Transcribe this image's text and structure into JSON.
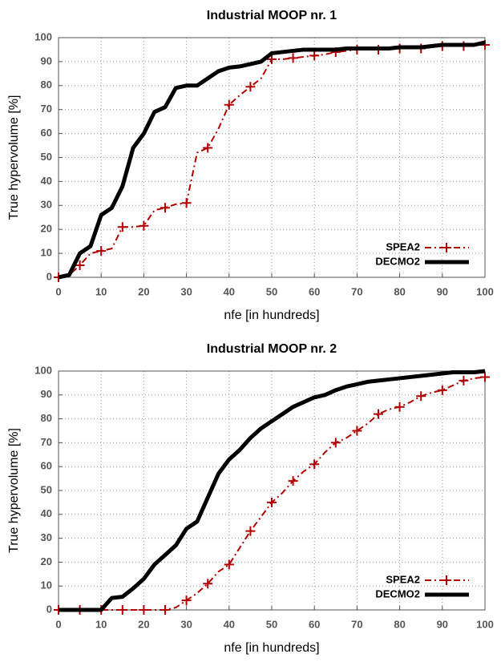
{
  "chart_data": [
    {
      "type": "line",
      "title": "Industrial MOOP nr. 1",
      "x_label": "nfe [in hundreds]",
      "y_label": "True hypervolume [%]",
      "x": [
        0,
        2.5,
        5,
        7.5,
        10,
        12.5,
        15,
        17.5,
        20,
        22.5,
        25,
        27.5,
        30,
        32.5,
        35,
        37.5,
        40,
        42.5,
        45,
        47.5,
        50,
        52.5,
        55,
        57.5,
        60,
        62.5,
        65,
        67.5,
        70,
        72.5,
        75,
        77.5,
        80,
        82.5,
        85,
        87.5,
        90,
        92.5,
        95,
        97.5,
        100
      ],
      "series": [
        {
          "name": "SPEA2",
          "color": "#b00000",
          "line_style": "dashdot",
          "marker": "+",
          "values": [
            0,
            1,
            5,
            10,
            11,
            12,
            21,
            21,
            21.5,
            28,
            29,
            30.5,
            31,
            52,
            54,
            62,
            72,
            76,
            79.5,
            83,
            91,
            91,
            91.5,
            92,
            92.5,
            93,
            94,
            94.5,
            95,
            95,
            95,
            95.5,
            95.5,
            95.5,
            95.5,
            96,
            96.5,
            96.5,
            96.5,
            97,
            97
          ]
        },
        {
          "name": "DECMO2",
          "color": "#000000",
          "line_style": "solid",
          "marker": "none",
          "values": [
            0,
            1,
            10,
            13,
            26,
            29,
            38,
            54,
            60,
            69,
            71,
            79,
            80,
            80,
            83,
            86,
            87.5,
            88,
            89,
            90,
            93.5,
            94,
            94.5,
            95,
            95,
            95,
            95,
            95.5,
            95.5,
            95.5,
            95.5,
            95.5,
            96,
            96,
            96,
            96.5,
            97,
            97,
            97,
            97,
            98
          ]
        }
      ],
      "xlim": [
        0,
        100
      ],
      "xticks": [
        0,
        10,
        20,
        30,
        40,
        50,
        60,
        70,
        80,
        90,
        100
      ],
      "ylim": [
        0,
        100
      ],
      "yticks": [
        0,
        10,
        20,
        30,
        40,
        50,
        60,
        70,
        80,
        90,
        100
      ],
      "grid": true,
      "legend": "lower right"
    },
    {
      "type": "line",
      "title": "Industrial MOOP nr. 2",
      "x_label": "nfe [in hundreds]",
      "y_label": "True hypervolume [%]",
      "x": [
        0,
        2.5,
        5,
        7.5,
        10,
        12.5,
        15,
        17.5,
        20,
        22.5,
        25,
        27.5,
        30,
        32.5,
        35,
        37.5,
        40,
        42.5,
        45,
        47.5,
        50,
        52.5,
        55,
        57.5,
        60,
        62.5,
        65,
        67.5,
        70,
        72.5,
        75,
        77.5,
        80,
        82.5,
        85,
        87.5,
        90,
        92.5,
        95,
        97.5,
        100
      ],
      "series": [
        {
          "name": "SPEA2",
          "color": "#b00000",
          "line_style": "dashdot",
          "marker": "+",
          "values": [
            0,
            0,
            0,
            0,
            0,
            0,
            0,
            0,
            0,
            0,
            0,
            1,
            4,
            7,
            11,
            16,
            19,
            26,
            33,
            39,
            45,
            49,
            54,
            58,
            61,
            66,
            70,
            72,
            75,
            78,
            82,
            84,
            85,
            87,
            89.5,
            91,
            92,
            94,
            96,
            97,
            97.5
          ]
        },
        {
          "name": "DECMO2",
          "color": "#000000",
          "line_style": "solid",
          "marker": "none",
          "values": [
            0,
            0,
            0,
            0,
            0,
            5,
            5.5,
            9,
            13,
            19,
            23,
            27,
            34,
            37,
            47,
            57,
            63,
            67,
            72,
            76,
            79,
            82,
            85,
            87,
            89,
            90,
            92,
            93.5,
            94.5,
            95.5,
            96,
            96.5,
            97,
            97.5,
            98,
            98.5,
            99,
            99.5,
            99.5,
            99.5,
            100
          ]
        }
      ],
      "xlim": [
        0,
        100
      ],
      "xticks": [
        0,
        10,
        20,
        30,
        40,
        50,
        60,
        70,
        80,
        90,
        100
      ],
      "ylim": [
        0,
        100
      ],
      "yticks": [
        0,
        10,
        20,
        30,
        40,
        50,
        60,
        70,
        80,
        90,
        100
      ],
      "grid": true,
      "legend": "lower right"
    }
  ]
}
